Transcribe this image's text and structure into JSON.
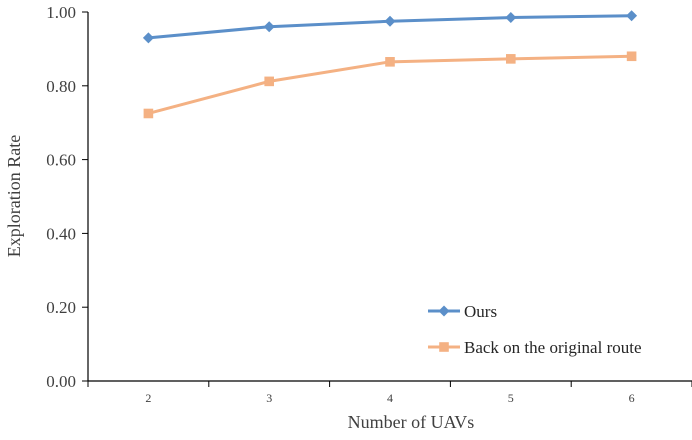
{
  "chart_data": {
    "type": "line",
    "title": "",
    "xlabel": "Number of UAVs",
    "ylabel": "Exploration Rate",
    "categories": [
      "2",
      "3",
      "4",
      "5",
      "6"
    ],
    "ylim": [
      0,
      1
    ],
    "yticks": [
      "0.00",
      "0.20",
      "0.40",
      "0.60",
      "0.80",
      "1.00"
    ],
    "grid": false,
    "legend_position": "bottom-right",
    "series": [
      {
        "name": "Ours",
        "color": "#5B8FC9",
        "marker": "diamond",
        "values": [
          0.93,
          0.96,
          0.975,
          0.985,
          0.99
        ]
      },
      {
        "name": "Back on the original route",
        "color": "#F4B183",
        "marker": "square",
        "values": [
          0.725,
          0.812,
          0.865,
          0.873,
          0.88
        ]
      }
    ]
  }
}
